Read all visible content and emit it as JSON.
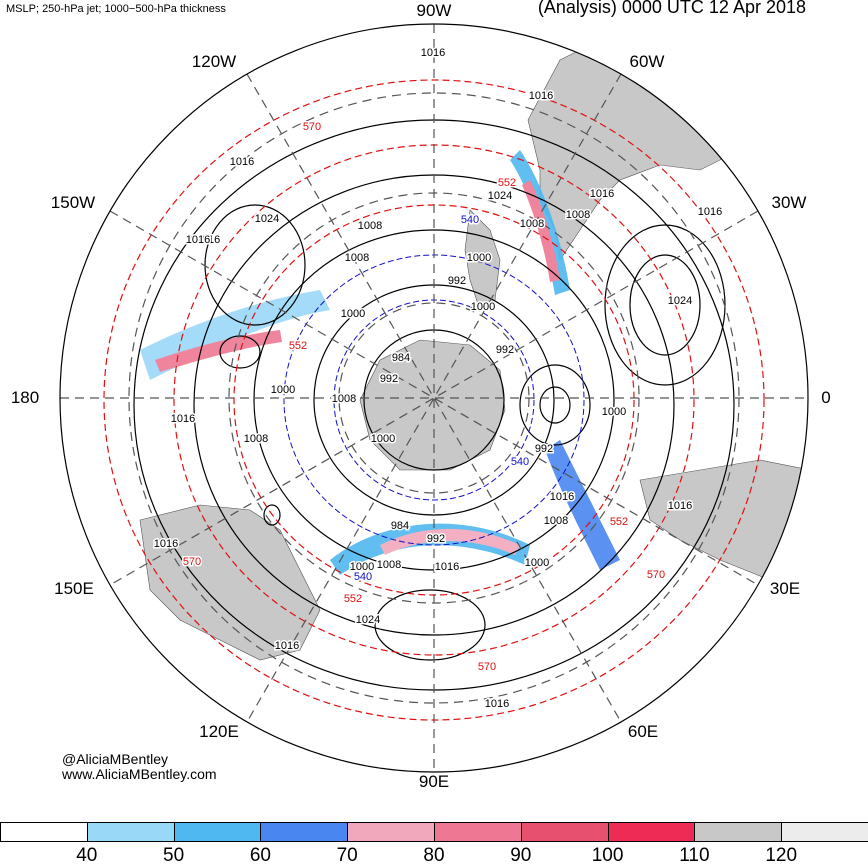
{
  "header": {
    "left_title": "MSLP; 250-hPa jet; 1000−500-hPa thickness",
    "right_title": "(Analysis) 0000 UTC 12 Apr 2018"
  },
  "longitude_labels": [
    "90W",
    "120W",
    "60W",
    "150W",
    "30W",
    "180",
    "0",
    "150E",
    "30E",
    "120E",
    "60E",
    "90E"
  ],
  "contour_labels": {
    "mslp": [
      "1016",
      "1016",
      "1016",
      "1016",
      "1024",
      "1008",
      "1016",
      "1024",
      "1008",
      "1000",
      "1008",
      "1016",
      "1024",
      "1000",
      "1000",
      "1008",
      "984",
      "992",
      "992",
      "1016",
      "1000",
      "984",
      "992",
      "1008",
      "1016",
      "1000",
      "1016",
      "1000",
      "992",
      "1016",
      "1008",
      "1000",
      "1000",
      "1008",
      "1016",
      "1024",
      "1016",
      "1016",
      "1016",
      "1008",
      "992"
    ],
    "thickness": [
      "570",
      "552",
      "540",
      "540",
      "552",
      "570",
      "552",
      "540",
      "570",
      "552",
      "570"
    ]
  },
  "colorbar": {
    "ticks": [
      "40",
      "50",
      "60",
      "70",
      "80",
      "90",
      "100",
      "110",
      "120"
    ],
    "colors": [
      "#ffffff",
      "#9ad8f8",
      "#4fb8f0",
      "#4a86ef",
      "#f2a8bc",
      "#ee7893",
      "#e85070",
      "#ee2b55",
      "#c8c8c8",
      "#ececec"
    ]
  },
  "credits": {
    "handle": "@AliciaMBentley",
    "website": "www.AliciaMBentley.com"
  },
  "colors": {
    "land": "#c8c8c8",
    "mslp_contour": "#000000",
    "thickness_contour": "#e01010",
    "low_thickness_contour": "#1010c8",
    "grid": "#555555"
  }
}
